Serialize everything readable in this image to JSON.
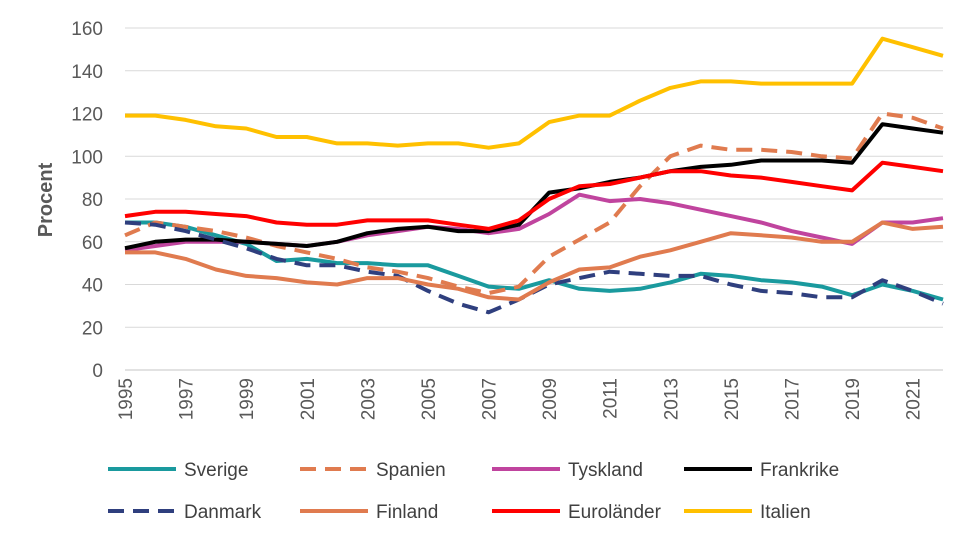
{
  "chart_data": {
    "type": "line",
    "title": "",
    "xlabel": "",
    "ylabel": "Procent",
    "ylim": [
      0,
      160
    ],
    "yticks": [
      0,
      20,
      40,
      60,
      80,
      100,
      120,
      140,
      160
    ],
    "xticks": [
      "1995",
      "1997",
      "1999",
      "2001",
      "2003",
      "2005",
      "2007",
      "2009",
      "2011",
      "2013",
      "2015",
      "2017",
      "2019",
      "2021"
    ],
    "grid": "horizontal",
    "legend_position": "bottom",
    "x": [
      1995,
      1996,
      1997,
      1998,
      1999,
      2000,
      2001,
      2002,
      2003,
      2004,
      2005,
      2006,
      2007,
      2008,
      2009,
      2010,
      2011,
      2012,
      2013,
      2014,
      2015,
      2016,
      2017,
      2018,
      2019,
      2020,
      2021,
      2022
    ],
    "series": [
      {
        "name": "Sverige",
        "color": "#1a9a9e",
        "dash": "solid",
        "values": [
          69,
          69,
          67,
          63,
          59,
          51,
          52,
          50,
          50,
          49,
          49,
          44,
          39,
          38,
          42,
          38,
          37,
          38,
          41,
          45,
          44,
          42,
          41,
          39,
          35,
          40,
          37,
          33
        ]
      },
      {
        "name": "Spanien",
        "color": "#e07b4f",
        "dash": "dashed",
        "values": [
          63,
          69,
          67,
          65,
          62,
          58,
          55,
          52,
          48,
          46,
          43,
          39,
          36,
          39,
          53,
          61,
          69,
          86,
          100,
          105,
          103,
          103,
          102,
          100,
          99,
          120,
          118,
          113
        ]
      },
      {
        "name": "Tyskland",
        "color": "#c0449e",
        "dash": "solid",
        "values": [
          56,
          58,
          60,
          60,
          60,
          59,
          58,
          60,
          63,
          65,
          67,
          66,
          64,
          66,
          73,
          82,
          79,
          80,
          78,
          75,
          72,
          69,
          65,
          62,
          59,
          69,
          69,
          71
        ]
      },
      {
        "name": "Frankrike",
        "color": "#000000",
        "dash": "solid",
        "values": [
          57,
          60,
          61,
          61,
          60,
          59,
          58,
          60,
          64,
          66,
          67,
          65,
          65,
          68,
          83,
          85,
          88,
          90,
          93,
          95,
          96,
          98,
          98,
          98,
          97,
          115,
          113,
          111
        ]
      },
      {
        "name": "Danmark",
        "color": "#2f3f7e",
        "dash": "dashed",
        "values": [
          69,
          68,
          65,
          61,
          57,
          52,
          49,
          49,
          46,
          44,
          37,
          31,
          27,
          33,
          40,
          43,
          46,
          45,
          44,
          44,
          40,
          37,
          36,
          34,
          34,
          42,
          37,
          31
        ]
      },
      {
        "name": "Finland",
        "color": "#e07b4f",
        "dash": "solid",
        "values": [
          55,
          55,
          52,
          47,
          44,
          43,
          41,
          40,
          43,
          43,
          40,
          38,
          34,
          33,
          41,
          47,
          48,
          53,
          56,
          60,
          64,
          63,
          62,
          60,
          60,
          69,
          66,
          67
        ]
      },
      {
        "name": "Euroländer",
        "color": "#ff0000",
        "dash": "solid",
        "values": [
          72,
          74,
          74,
          73,
          72,
          69,
          68,
          68,
          70,
          70,
          70,
          68,
          66,
          70,
          80,
          86,
          87,
          90,
          93,
          93,
          91,
          90,
          88,
          86,
          84,
          97,
          95,
          93
        ]
      },
      {
        "name": "Italien",
        "color": "#ffc000",
        "dash": "solid",
        "values": [
          119,
          119,
          117,
          114,
          113,
          109,
          109,
          106,
          106,
          105,
          106,
          106,
          104,
          106,
          116,
          119,
          119,
          126,
          132,
          135,
          135,
          134,
          134,
          134,
          134,
          155,
          151,
          147
        ]
      }
    ]
  }
}
